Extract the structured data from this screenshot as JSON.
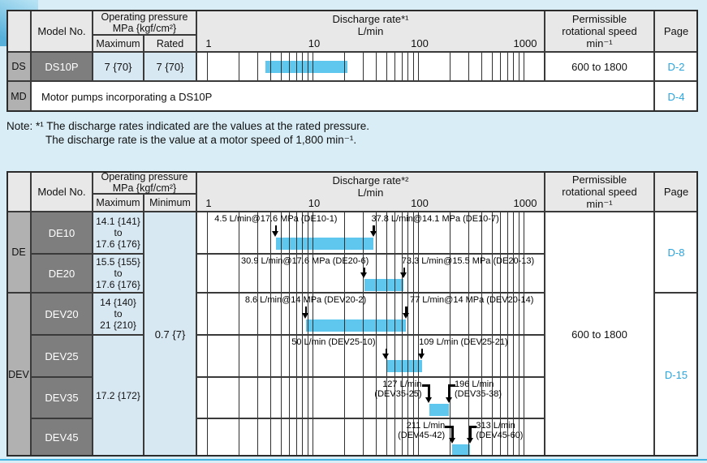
{
  "accent": {
    "bar_color": "#5fc6ee",
    "link_color": "#2aa4dd"
  },
  "notes": {
    "line1": "Note: *¹ The discharge rates indicated are the values at the rated pressure.",
    "line2": "The discharge rate is the value at a motor speed of 1,800 min⁻¹."
  },
  "table1": {
    "model_header": "Model No.",
    "pressure_header": "Operating pressure\nMPa {kgf/cm²}",
    "pressure_sub": [
      "Maximum",
      "Rated"
    ],
    "discharge_header": "Discharge rate*¹",
    "discharge_unit": "L/min",
    "speed_header": "Permissible\nrotational speed\nmin⁻¹",
    "page_header": "Page",
    "rows": [
      {
        "group": "DS",
        "model": "DS10P",
        "max": "7 {70}",
        "rated": "7 {70}",
        "speed": "600 to 1800",
        "page": "D-2"
      },
      {
        "group": "MD",
        "description": "Motor pumps incorporating a DS10P",
        "page": "D-4"
      }
    ]
  },
  "table2": {
    "model_header": "Model No.",
    "pressure_header": "Operating pressure\nMPa {kgf/cm²}",
    "pressure_sub": [
      "Maximum",
      "Minimum"
    ],
    "discharge_header": "Discharge rate*²",
    "discharge_unit": "L/min",
    "speed_header": "Permissible\nrotational speed\nmin⁻¹",
    "page_header": "Page",
    "groups": [
      "DE",
      "DEV"
    ],
    "models": [
      "DE10",
      "DE20",
      "DEV20",
      "DEV25",
      "DEV35",
      "DEV45"
    ],
    "max_pressures": {
      "de10": "14.1 {141}\nto\n17.6 {176}",
      "de20": "15.5 {155}\nto\n17.6 {176}",
      "dev20": "14 {140}\nto\n21 {210}",
      "dev25_45": "17.2 {172}"
    },
    "min_pressure": "0.7 {7}",
    "speed": "600 to 1800",
    "pages": [
      "D-8",
      "D-15"
    ]
  },
  "chart_data": {
    "type": "range_bar",
    "x_scale": "log",
    "x_unit": "L/min",
    "x_ticks": [
      "1",
      "10",
      "100",
      "1000"
    ],
    "x_range": [
      1,
      1000
    ],
    "grid": true,
    "series": [
      {
        "id": "ds10p",
        "model": "DS10P",
        "range_lmin": [
          3.6,
          21.5
        ],
        "labels": []
      },
      {
        "id": "de10",
        "model": "DE10",
        "range_lmin": [
          4.5,
          37.8
        ],
        "labels": [
          {
            "text": "4.5 L/min@17.6 MPa (DE10-1)",
            "value": 4.5
          },
          {
            "text": "37.8 L/min@14.1 MPa (DE10-7)",
            "value": 37.8
          }
        ]
      },
      {
        "id": "de20",
        "model": "DE20",
        "range_lmin": [
          30.9,
          73.3
        ],
        "labels": [
          {
            "text": "30.9 L/min@17.6 MPa (DE20-6)",
            "value": 30.9
          },
          {
            "text": "73.3 L/min@15.5 MPa (DE20-13)",
            "value": 73.3
          }
        ]
      },
      {
        "id": "dev20",
        "model": "DEV20",
        "range_lmin": [
          8.6,
          77
        ],
        "labels": [
          {
            "text": "8.6 L/min@14 MPa (DEV20-2)",
            "value": 8.6
          },
          {
            "text": "77 L/min@14 MPa (DEV20-14)",
            "value": 77
          }
        ]
      },
      {
        "id": "dev25",
        "model": "DEV25",
        "range_lmin": [
          50,
          109
        ],
        "labels": [
          {
            "text": "50 L/min (DEV25-10)",
            "value": 50
          },
          {
            "text": "109 L/min (DEV25-21)",
            "value": 109
          }
        ]
      },
      {
        "id": "dev35",
        "model": "DEV35",
        "range_lmin": [
          127,
          196
        ],
        "labels": [
          {
            "text": "127 L/min\n(DEV35-25)",
            "value": 127
          },
          {
            "text": "196 L/min\n(DEV35-38)",
            "value": 196
          }
        ]
      },
      {
        "id": "dev45",
        "model": "DEV45",
        "range_lmin": [
          211,
          313
        ],
        "labels": [
          {
            "text": "211 L/min\n(DEV45-42)",
            "value": 211
          },
          {
            "text": "313 L/min\n(DEV45-60)",
            "value": 313
          }
        ]
      }
    ]
  }
}
